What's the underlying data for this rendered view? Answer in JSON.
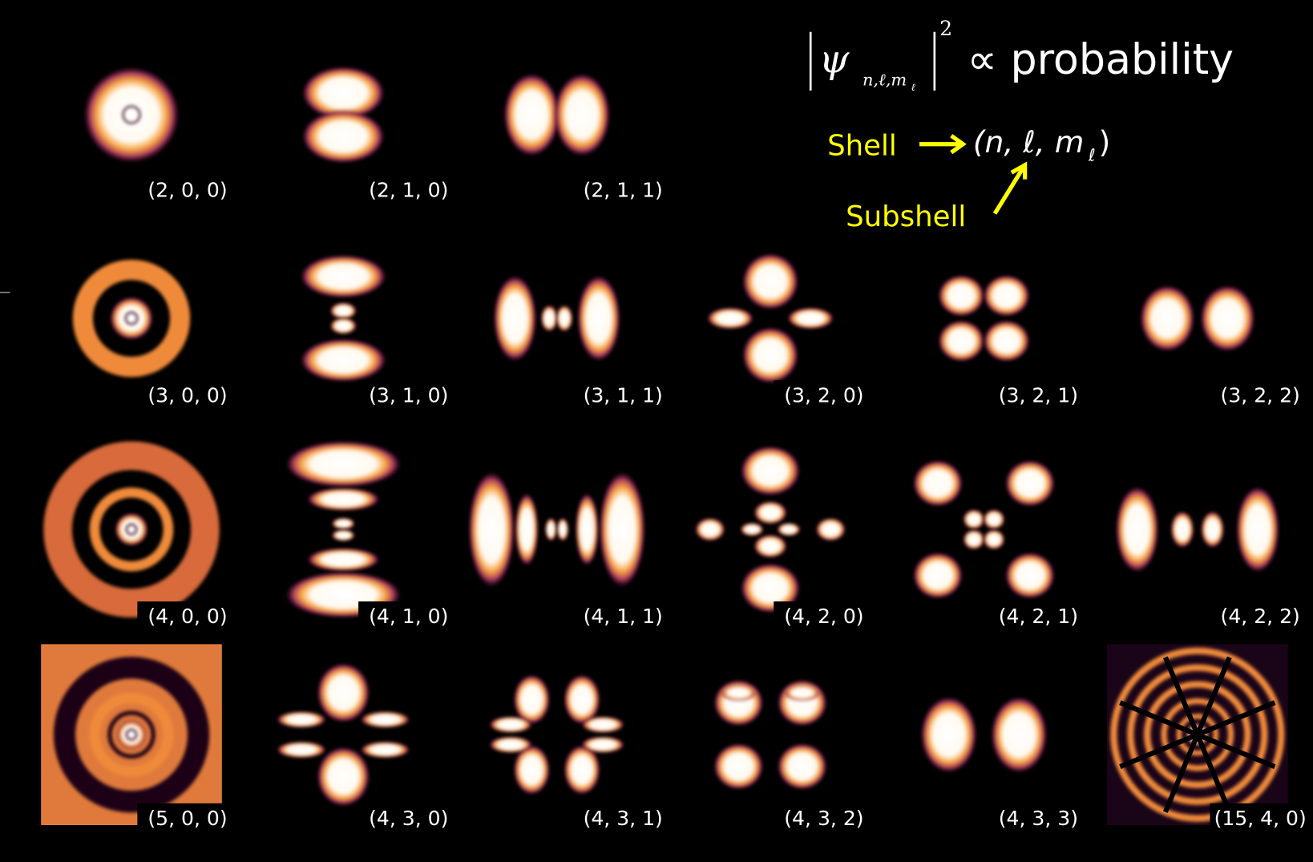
{
  "formula": {
    "psi": "ψ",
    "subscript": "n,ℓ,m",
    "subsubscript": "ℓ",
    "exponent": "2",
    "relation": "∝ probability"
  },
  "legend": {
    "shell": "Shell",
    "subshell": "Subshell",
    "tuple_open": "(n, ℓ, m",
    "tuple_sub": "ℓ",
    "tuple_close": ")"
  },
  "orbitals": [
    {
      "label": "(2, 0, 0)"
    },
    {
      "label": "(2, 1, 0)"
    },
    {
      "label": "(2, 1, 1)"
    },
    {
      "label": "(3, 0, 0)"
    },
    {
      "label": "(3, 1, 0)"
    },
    {
      "label": "(3, 1, 1)"
    },
    {
      "label": "(3, 2, 0)"
    },
    {
      "label": "(3, 2, 1)"
    },
    {
      "label": "(3, 2, 2)"
    },
    {
      "label": "(4, 0, 0)"
    },
    {
      "label": "(4, 1, 0)"
    },
    {
      "label": "(4, 1, 1)"
    },
    {
      "label": "(4, 2, 0)"
    },
    {
      "label": "(4, 2, 1)"
    },
    {
      "label": "(4, 2, 2)"
    },
    {
      "label": "(5, 0, 0)"
    },
    {
      "label": "(4, 3, 0)"
    },
    {
      "label": "(4, 3, 1)"
    },
    {
      "label": "(4, 3, 2)"
    },
    {
      "label": "(4, 3, 3)"
    },
    {
      "label": "(15, 4, 0)"
    }
  ]
}
